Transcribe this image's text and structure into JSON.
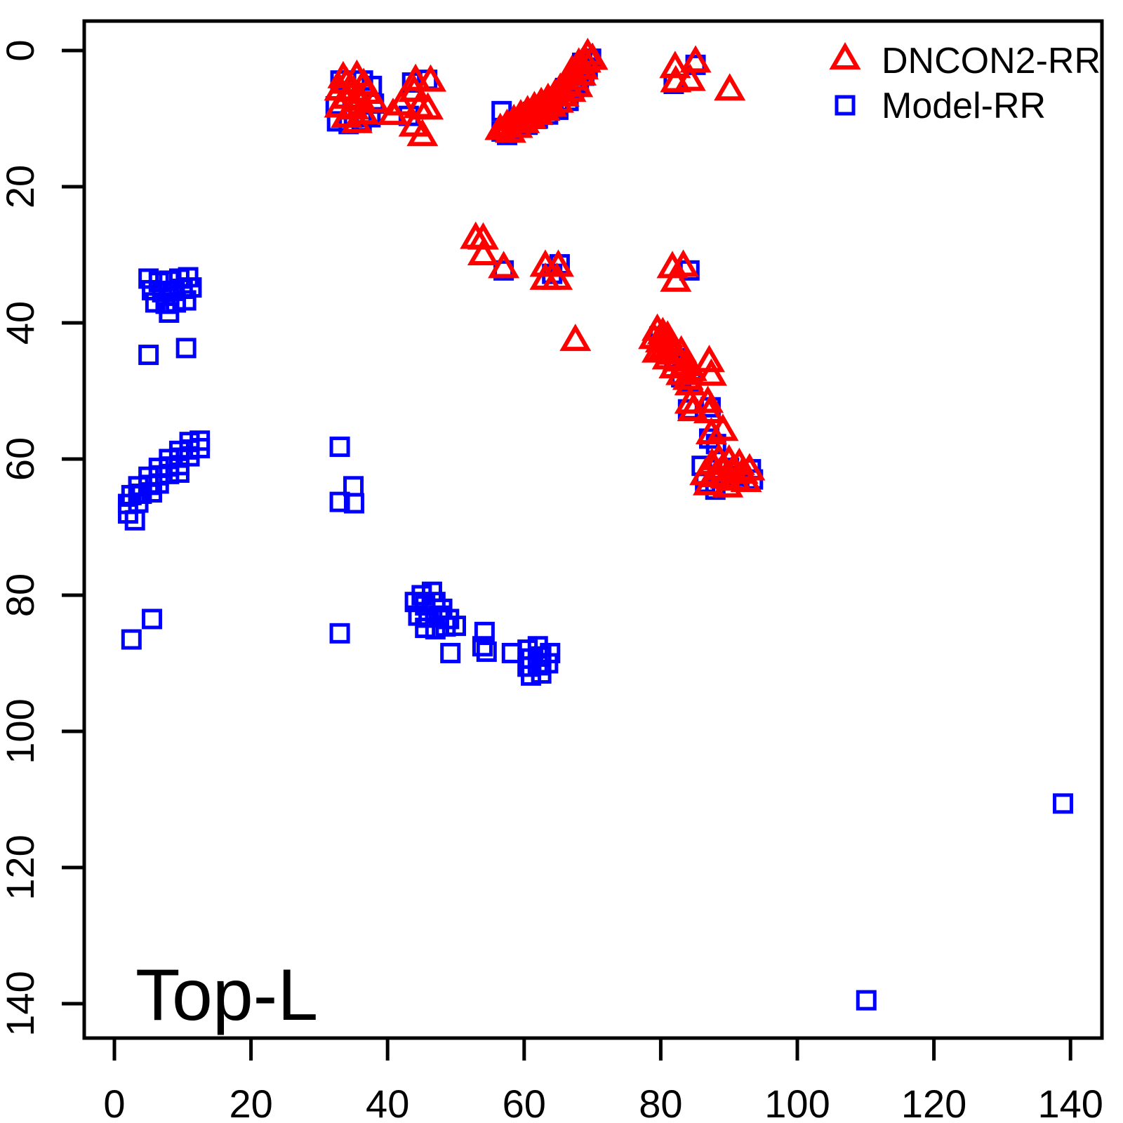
{
  "chart_data": {
    "type": "scatter",
    "title": "",
    "xlabel": "",
    "ylabel": "",
    "annotation": "Top-L",
    "axes": {
      "xticks": [
        0,
        20,
        40,
        60,
        80,
        100,
        120,
        140
      ],
      "yticks": [
        0,
        20,
        40,
        60,
        80,
        100,
        120,
        140
      ],
      "x_range": [
        -4.5,
        145
      ],
      "y_range": [
        -4.5,
        145
      ],
      "y_inverted": true,
      "grid": false
    },
    "legend": {
      "position": "top-right",
      "entries": [
        "DNCON2-RR",
        "Model-RR"
      ]
    },
    "series": [
      {
        "name": "DNCON2-RR",
        "marker": "open-triangle-up",
        "color": "#FF0000",
        "points": [
          [
            33.5,
            4.2
          ],
          [
            35.5,
            4.0
          ],
          [
            34.0,
            5.0
          ],
          [
            36.5,
            5.2
          ],
          [
            33.0,
            6.0
          ],
          [
            35.0,
            6.2
          ],
          [
            37.0,
            6.5
          ],
          [
            34.0,
            7.2
          ],
          [
            36.0,
            7.5
          ],
          [
            38.0,
            7.8
          ],
          [
            33.0,
            8.5
          ],
          [
            35.0,
            8.8
          ],
          [
            36.5,
            9.5
          ],
          [
            34.0,
            10.0
          ],
          [
            35.5,
            10.8
          ],
          [
            44.1,
            4.6
          ],
          [
            46.3,
            4.7
          ],
          [
            43.9,
            6.2
          ],
          [
            42.0,
            8.2
          ],
          [
            44.6,
            8.6
          ],
          [
            45.9,
            8.8
          ],
          [
            40.8,
            9.6
          ],
          [
            43.9,
            11.3
          ],
          [
            45.1,
            12.7
          ],
          [
            56.5,
            11.8
          ],
          [
            57.5,
            11.2
          ],
          [
            58.0,
            12.2
          ],
          [
            58.5,
            10.5
          ],
          [
            59.0,
            11.5
          ],
          [
            59.5,
            9.8
          ],
          [
            60.0,
            10.8
          ],
          [
            60.5,
            9.2
          ],
          [
            61.0,
            10.2
          ],
          [
            61.5,
            8.6
          ],
          [
            62.0,
            9.6
          ],
          [
            62.5,
            8.0
          ],
          [
            63.0,
            9.0
          ],
          [
            63.5,
            7.4
          ],
          [
            64.0,
            8.4
          ],
          [
            64.5,
            6.8
          ],
          [
            65.0,
            7.8
          ],
          [
            65.3,
            5.9
          ],
          [
            65.8,
            6.9
          ],
          [
            66.3,
            5.2
          ],
          [
            66.8,
            6.2
          ],
          [
            67.3,
            4.5
          ],
          [
            67.8,
            5.5
          ],
          [
            68.3,
            3.8
          ],
          [
            68.6,
            2.9
          ],
          [
            69.0,
            1.9
          ],
          [
            69.3,
            0.8
          ],
          [
            70.0,
            1.5
          ],
          [
            68.0,
            2.2
          ],
          [
            67.0,
            3.3
          ],
          [
            82.1,
            2.7
          ],
          [
            85.1,
            1.9
          ],
          [
            82.2,
            4.8
          ],
          [
            84.3,
            4.6
          ],
          [
            90.1,
            6.0
          ],
          [
            52.9,
            27.8
          ],
          [
            54.0,
            27.9
          ],
          [
            54.0,
            30.2
          ],
          [
            57.0,
            32.1
          ],
          [
            63.1,
            31.9
          ],
          [
            65.0,
            31.9
          ],
          [
            63.1,
            33.8
          ],
          [
            64.8,
            33.8
          ],
          [
            81.7,
            32.1
          ],
          [
            83.3,
            31.9
          ],
          [
            82.2,
            34.1
          ],
          [
            67.5,
            42.8
          ],
          [
            79.5,
            41.3
          ],
          [
            80.3,
            41.8
          ],
          [
            79.0,
            42.5
          ],
          [
            80.0,
            43.0
          ],
          [
            81.0,
            42.3
          ],
          [
            80.5,
            44.0
          ],
          [
            81.5,
            43.5
          ],
          [
            79.5,
            44.5
          ],
          [
            82.0,
            44.8
          ],
          [
            81.0,
            45.5
          ],
          [
            82.5,
            45.8
          ],
          [
            83.0,
            44.5
          ],
          [
            82.0,
            46.8
          ],
          [
            83.5,
            46.5
          ],
          [
            83.0,
            47.8
          ],
          [
            84.0,
            48.5
          ],
          [
            84.5,
            47.2
          ],
          [
            87.1,
            45.9
          ],
          [
            87.4,
            47.9
          ],
          [
            84.3,
            49.3
          ],
          [
            84.3,
            52.0
          ],
          [
            86.9,
            51.9
          ],
          [
            84.7,
            53.1
          ],
          [
            87.1,
            53.4
          ],
          [
            87.4,
            56.5
          ],
          [
            89.1,
            56.0
          ],
          [
            86.5,
            62.5
          ],
          [
            87.5,
            61.0
          ],
          [
            88.0,
            62.8
          ],
          [
            88.5,
            60.3
          ],
          [
            89.0,
            61.8
          ],
          [
            89.5,
            63.0
          ],
          [
            90.0,
            60.5
          ],
          [
            90.5,
            62.0
          ],
          [
            91.0,
            63.3
          ],
          [
            91.5,
            61.0
          ],
          [
            92.0,
            62.3
          ],
          [
            92.5,
            63.5
          ],
          [
            93.0,
            61.8
          ],
          [
            87.0,
            64.0
          ],
          [
            89.8,
            64.3
          ]
        ]
      },
      {
        "name": "Model-RR",
        "marker": "open-square",
        "color": "#0000FF",
        "points": [
          [
            33.1,
            4.4
          ],
          [
            36.4,
            4.4
          ],
          [
            37.7,
            5.2
          ],
          [
            32.4,
            8.2
          ],
          [
            38.0,
            7.8
          ],
          [
            32.6,
            10.4
          ],
          [
            34.3,
            10.8
          ],
          [
            36.2,
            10.4
          ],
          [
            37.5,
            9.8
          ],
          [
            43.6,
            4.7
          ],
          [
            45.8,
            4.3
          ],
          [
            43.1,
            9.6
          ],
          [
            56.7,
            11.9
          ],
          [
            56.7,
            8.9
          ],
          [
            57.5,
            12.4
          ],
          [
            58.3,
            11.6
          ],
          [
            59.0,
            10.6
          ],
          [
            59.8,
            9.9
          ],
          [
            60.5,
            10.9
          ],
          [
            61.3,
            9.0
          ],
          [
            62.0,
            10.0
          ],
          [
            62.8,
            8.4
          ],
          [
            63.5,
            9.4
          ],
          [
            64.3,
            7.7
          ],
          [
            65.0,
            8.7
          ],
          [
            65.8,
            6.6
          ],
          [
            66.5,
            7.4
          ],
          [
            67.3,
            5.8
          ],
          [
            68.0,
            4.9
          ],
          [
            68.8,
            3.7
          ],
          [
            69.3,
            2.5
          ],
          [
            69.8,
            1.2
          ],
          [
            68.5,
            1.8
          ],
          [
            66.0,
            5.5
          ],
          [
            85.1,
            2.1
          ],
          [
            81.9,
            4.9
          ],
          [
            57.0,
            32.3
          ],
          [
            64.1,
            32.8
          ],
          [
            65.2,
            31.4
          ],
          [
            84.2,
            32.3
          ],
          [
            5.0,
            33.5
          ],
          [
            6.5,
            34.0
          ],
          [
            8.0,
            33.8
          ],
          [
            9.5,
            33.5
          ],
          [
            10.8,
            33.3
          ],
          [
            5.5,
            35.2
          ],
          [
            7.0,
            35.5
          ],
          [
            8.5,
            35.3
          ],
          [
            10.0,
            35.0
          ],
          [
            11.3,
            34.8
          ],
          [
            6.0,
            37.0
          ],
          [
            7.5,
            37.2
          ],
          [
            9.0,
            37.0
          ],
          [
            10.5,
            36.7
          ],
          [
            8.0,
            38.5
          ],
          [
            5.0,
            44.7
          ],
          [
            10.5,
            43.7
          ],
          [
            11.0,
            57.5
          ],
          [
            12.5,
            57.3
          ],
          [
            9.5,
            58.8
          ],
          [
            11.0,
            58.6
          ],
          [
            12.5,
            58.4
          ],
          [
            8.0,
            60.0
          ],
          [
            9.5,
            59.8
          ],
          [
            11.0,
            59.6
          ],
          [
            6.5,
            61.3
          ],
          [
            8.0,
            61.1
          ],
          [
            9.5,
            60.9
          ],
          [
            5.0,
            62.6
          ],
          [
            6.5,
            62.4
          ],
          [
            8.0,
            62.2
          ],
          [
            9.5,
            62.0
          ],
          [
            3.5,
            64.0
          ],
          [
            5.0,
            63.8
          ],
          [
            6.5,
            63.6
          ],
          [
            2.5,
            65.3
          ],
          [
            4.0,
            65.1
          ],
          [
            5.5,
            64.9
          ],
          [
            2.0,
            66.6
          ],
          [
            3.5,
            66.4
          ],
          [
            2.0,
            68.0
          ],
          [
            3.0,
            69.0
          ],
          [
            5.5,
            83.5
          ],
          [
            2.5,
            86.5
          ],
          [
            33.0,
            58.2
          ],
          [
            35.0,
            64.0
          ],
          [
            33.0,
            66.3
          ],
          [
            35.1,
            66.5
          ],
          [
            33.0,
            85.6
          ],
          [
            45.0,
            80.0
          ],
          [
            46.5,
            79.5
          ],
          [
            44.0,
            81.0
          ],
          [
            45.5,
            81.5
          ],
          [
            47.0,
            81.0
          ],
          [
            48.0,
            82.0
          ],
          [
            44.5,
            83.0
          ],
          [
            46.0,
            83.3
          ],
          [
            47.5,
            83.0
          ],
          [
            49.0,
            83.5
          ],
          [
            45.5,
            84.8
          ],
          [
            47.0,
            85.0
          ],
          [
            48.5,
            84.6
          ],
          [
            50.0,
            84.5
          ],
          [
            49.2,
            88.5
          ],
          [
            54.2,
            85.4
          ],
          [
            53.9,
            87.5
          ],
          [
            54.5,
            88.3
          ],
          [
            58.2,
            88.5
          ],
          [
            60.5,
            88.0
          ],
          [
            62.0,
            87.5
          ],
          [
            61.0,
            89.3
          ],
          [
            62.5,
            89.0
          ],
          [
            63.8,
            88.5
          ],
          [
            60.5,
            90.5
          ],
          [
            62.0,
            90.3
          ],
          [
            63.5,
            90.0
          ],
          [
            61.0,
            91.8
          ],
          [
            62.5,
            91.5
          ],
          [
            79.8,
            42.0
          ],
          [
            81.0,
            43.8
          ],
          [
            82.0,
            45.2
          ],
          [
            83.2,
            46.2
          ],
          [
            83.0,
            48.0
          ],
          [
            84.5,
            48.8
          ],
          [
            84.0,
            52.7
          ],
          [
            87.3,
            52.4
          ],
          [
            87.1,
            57.0
          ],
          [
            88.1,
            57.8
          ],
          [
            86.0,
            61.0
          ],
          [
            88.5,
            61.5
          ],
          [
            90.0,
            61.3
          ],
          [
            91.5,
            62.5
          ],
          [
            93.2,
            61.5
          ],
          [
            93.5,
            63.0
          ],
          [
            86.5,
            63.5
          ],
          [
            88.0,
            64.5
          ],
          [
            110.1,
            139.5
          ],
          [
            138.9,
            110.6
          ]
        ]
      }
    ]
  }
}
